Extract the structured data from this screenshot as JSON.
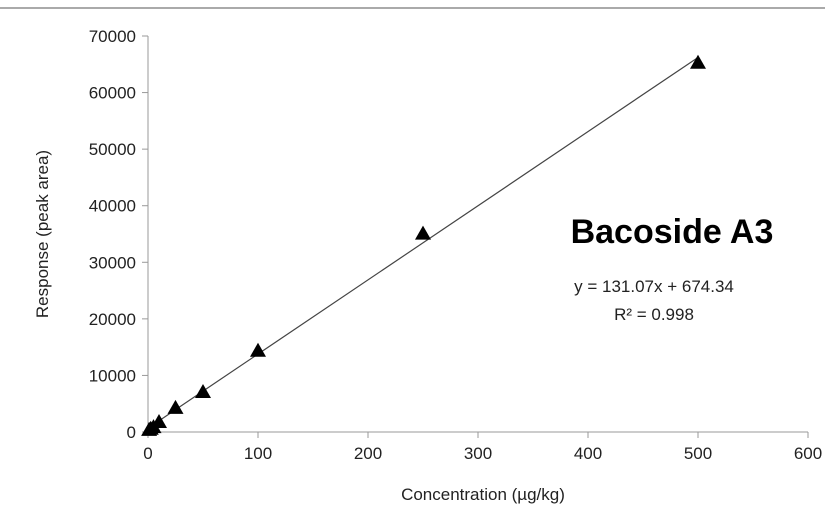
{
  "chart_data": {
    "type": "scatter",
    "xlabel": "Concentration (µg/kg)",
    "ylabel": "Response (peak area)",
    "xlim": [
      0,
      600
    ],
    "ylim": [
      0,
      70000
    ],
    "x_ticks": [
      0,
      100,
      200,
      300,
      400,
      500,
      600
    ],
    "y_ticks": [
      0,
      10000,
      20000,
      30000,
      40000,
      50000,
      60000,
      70000
    ],
    "grid": false,
    "legend": "none",
    "marker": "triangle",
    "colors": {
      "marker": "#000000",
      "trendline": "#444444",
      "axis": "#999999"
    },
    "series": [
      {
        "x": [
          1,
          2.5,
          5,
          10,
          25,
          50,
          100,
          250,
          500
        ],
        "y": [
          300,
          500,
          800,
          1700,
          4200,
          7000,
          14300,
          35000,
          65200
        ]
      }
    ],
    "trendline": {
      "slope": 131.07,
      "intercept": 674.34
    },
    "annotations": {
      "title": "Bacoside A3",
      "equation": "y = 131.07x + 674.34",
      "r2": "R² = 0.998"
    }
  }
}
